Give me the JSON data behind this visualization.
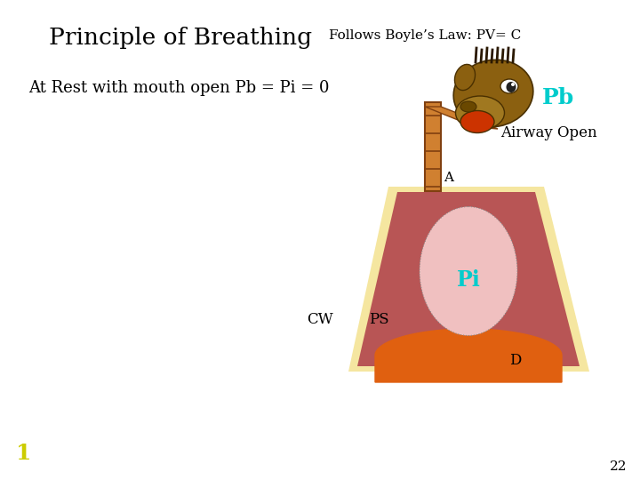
{
  "title": "Principle of Breathing",
  "subtitle": "Follows Boyle’s Law: PV= C",
  "subtitle2": "At Rest with mouth open Pb = Pi = 0",
  "label_Pb": "Pb",
  "label_airway": "Airway Open",
  "label_A": "A",
  "label_Pi": "Pi",
  "label_CW": "CW",
  "label_PS": "PS",
  "label_D": "D",
  "label_1": "1",
  "label_22": "22",
  "bg_color": "#ffffff",
  "trapezoid_outer_color": "#f5e6a0",
  "trapezoid_inner_color": "#b85555",
  "diaphragm_color": "#e06010",
  "lung_color": "#f0c0c0",
  "trachea_color": "#d08030",
  "Pb_color": "#00cccc",
  "Pi_color": "#00cccc",
  "text_color": "#000000",
  "yellow_1_color": "#cccc00",
  "animal_body_color": "#8B6010",
  "animal_snout_color": "#a07820",
  "animal_mouth_color": "#cc3300"
}
